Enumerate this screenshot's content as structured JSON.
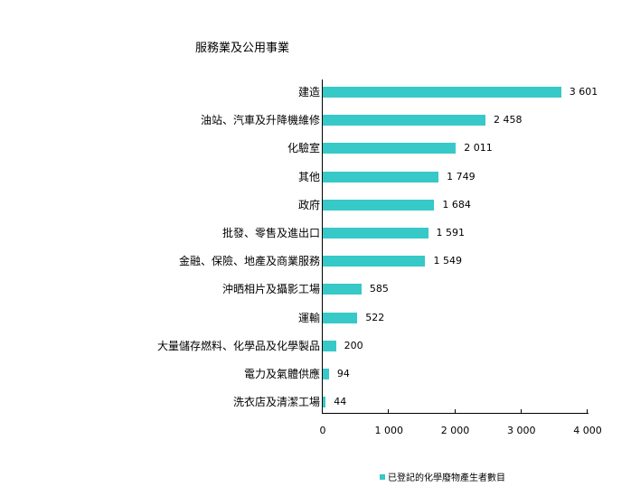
{
  "chart_data": {
    "type": "bar",
    "orientation": "horizontal",
    "title": "服務業及公用事業",
    "xlabel": "",
    "ylabel": "",
    "xlim": [
      0,
      4000
    ],
    "grid": false,
    "legend_position": "bottom",
    "categories": [
      "建造",
      "油站、汽車及升降機維修",
      "化驗室",
      "其他",
      "政府",
      "批發、零售及進出口",
      "金融、保險、地產及商業服務",
      "沖晒相片及攝影工場",
      "運輸",
      "大量儲存燃料、化學品及化學製品",
      "電力及氣體供應",
      "洗衣店及清潔工場"
    ],
    "series": [
      {
        "name": "已登記的化學廢物產生者數目",
        "color": "#37C8C8",
        "values": [
          3601,
          2458,
          2011,
          1749,
          1684,
          1591,
          1549,
          585,
          522,
          200,
          94,
          44
        ],
        "labels": [
          "3 601",
          "2 458",
          "2 011",
          "1 749",
          "1 684",
          "1 591",
          "1 549",
          "585",
          "522",
          "200",
          "94",
          "44"
        ]
      }
    ],
    "x_ticks": [
      0,
      1000,
      2000,
      3000,
      4000
    ],
    "x_tick_labels": [
      "0",
      "1 000",
      "2 000",
      "3 000",
      "4 000"
    ]
  },
  "header": {
    "title": "服務業及公用事業"
  },
  "legend": {
    "label": "已登記的化學廢物產生者數目"
  }
}
